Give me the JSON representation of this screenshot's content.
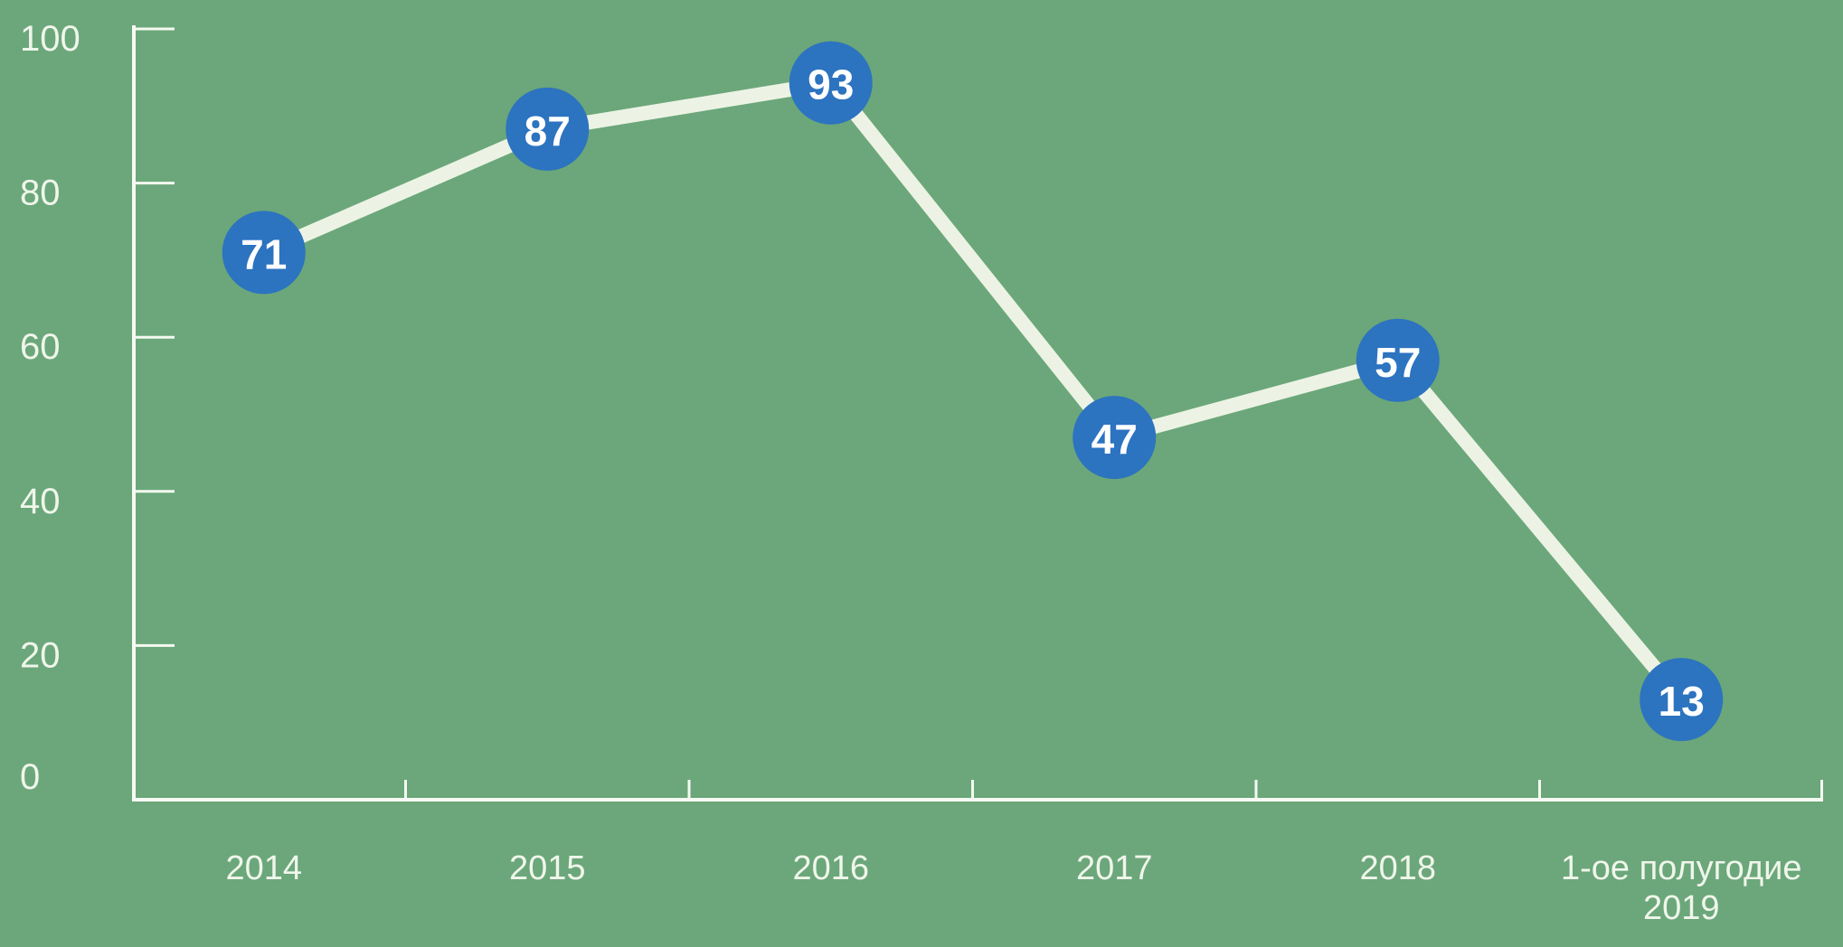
{
  "chart_data": {
    "type": "line",
    "categories": [
      "2014",
      "2015",
      "2016",
      "2017",
      "2018",
      "1-ое полугодие 2019"
    ],
    "category_lines": [
      [
        "2014"
      ],
      [
        "2015"
      ],
      [
        "2016"
      ],
      [
        "2017"
      ],
      [
        "2018"
      ],
      [
        "1-ое полугодие",
        "2019"
      ]
    ],
    "values": [
      71,
      87,
      93,
      47,
      57,
      13
    ],
    "data_labels": [
      71,
      87,
      93,
      47,
      57,
      13
    ],
    "title": "",
    "xlabel": "",
    "ylabel": "",
    "ylim": [
      0,
      100
    ],
    "yticks": [
      0,
      20,
      40,
      60,
      80,
      100
    ],
    "ytick_labels": [
      "0",
      "20",
      "40",
      "60",
      "80",
      "100"
    ],
    "grid": false,
    "legend": "none",
    "marker_shape": "circle",
    "colors": {
      "background": "#6BA77A",
      "line": "#ECF3E4",
      "marker": "#2C73C0",
      "marker_text": "#FFFFFF",
      "axis": "#F7FAF4",
      "tick": "#F5F9F1",
      "label": "#F0F6EB"
    }
  }
}
